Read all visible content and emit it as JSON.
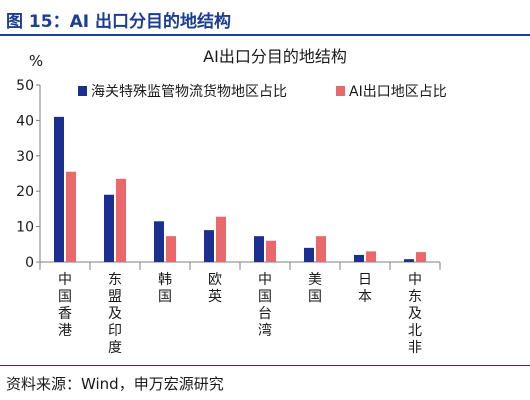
{
  "figure": {
    "title": "图 15：AI 出口分目的地结构",
    "source": "资料来源：Wind，申万宏源研究"
  },
  "colors": {
    "title": "#1b3d93",
    "series1": "#1b2f8f",
    "series2": "#e8686c",
    "axis": "#7f7f7f"
  },
  "chart_data": {
    "type": "bar",
    "title": "AI出口分目的地结构",
    "ylabel": "%",
    "ylim": [
      0,
      50
    ],
    "yticks": [
      0,
      10,
      20,
      30,
      40,
      50
    ],
    "grid": false,
    "legend_position": "top-right",
    "categories": [
      "中国香港",
      "东盟及印度",
      "韩国",
      "欧英",
      "中国台湾",
      "美国",
      "日本",
      "中东及北非"
    ],
    "series": [
      {
        "name": "海关特殊监管物流货物地区占比",
        "values": [
          41,
          19,
          11.5,
          9,
          7.3,
          4,
          2,
          0.8
        ]
      },
      {
        "name": "AI出口地区占比",
        "values": [
          25.5,
          23.5,
          7.3,
          12.8,
          6,
          7.3,
          3,
          2.8
        ]
      }
    ]
  }
}
